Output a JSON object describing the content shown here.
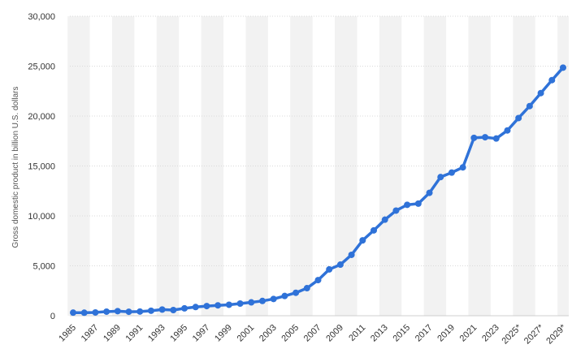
{
  "chart_data": {
    "type": "line",
    "title": "",
    "xlabel": "",
    "ylabel": "Gross domestic product in billion U.S. dollars",
    "ylim": [
      0,
      30000
    ],
    "y_ticks": [
      0,
      5000,
      10000,
      15000,
      20000,
      25000,
      30000
    ],
    "y_tick_labels": [
      "0",
      "5,000",
      "10,000",
      "15,000",
      "20,000",
      "25,000",
      "30,000"
    ],
    "x": [
      1985,
      1986,
      1987,
      1988,
      1989,
      1990,
      1991,
      1992,
      1993,
      1994,
      1995,
      1996,
      1997,
      1998,
      1999,
      2000,
      2001,
      2002,
      2003,
      2004,
      2005,
      2006,
      2007,
      2008,
      2009,
      2010,
      2011,
      2012,
      2013,
      2014,
      2015,
      2016,
      2017,
      2018,
      2019,
      2020,
      2021,
      2022,
      2023,
      2024,
      2025,
      2026,
      2027,
      2028,
      2029
    ],
    "x_tick_labels": [
      "1985",
      "1987",
      "1989",
      "1991",
      "1993",
      "1995",
      "1997",
      "1999",
      "2001",
      "2003",
      "2005",
      "2007",
      "2009",
      "2011",
      "2013",
      "2015",
      "2017",
      "2019",
      "2021",
      "2023",
      "2025*",
      "2027*",
      "2029*"
    ],
    "series": [
      {
        "name": "GDP",
        "color": "#2f72d8",
        "values": [
          310,
          300,
          330,
          410,
          460,
          400,
          420,
          500,
          620,
          570,
          740,
          870,
          970,
          1040,
          1100,
          1220,
          1340,
          1480,
          1680,
          1980,
          2300,
          2760,
          3570,
          4640,
          5120,
          6100,
          7550,
          8550,
          9620,
          10530,
          11110,
          11230,
          12310,
          13890,
          14340,
          14860,
          17820,
          17880,
          17750,
          18560,
          19800,
          21000,
          22300,
          23600,
          24850
        ]
      }
    ]
  }
}
